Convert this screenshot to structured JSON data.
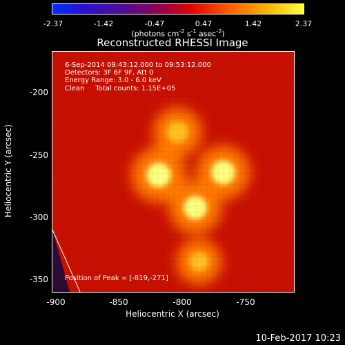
{
  "colorbar": {
    "ticks": [
      "-2.37",
      "-1.42",
      "-0.47",
      "0.47",
      "1.42",
      "2.37"
    ],
    "units_main": "(photons cm",
    "units_exp1": "-2",
    "units_mid1": " s",
    "units_exp2": "-1",
    "units_mid2": " asec",
    "units_exp3": "-2",
    "units_end": ")"
  },
  "title": "Reconstructed RHESSI Image",
  "info": {
    "line1": "6-Sep-2014 09:43:12.000 to 09:53:12.000",
    "line2": "Detectors: 3F 6F 9F, Att 0",
    "line3": "Energy Range: 3.0 - 6.0 keV",
    "line4": "Clean     Total counts: 1.15E+05",
    "peak": "Position of Peak = [-819,-271]"
  },
  "axes": {
    "xlabel": "Heliocentric X (arcsec)",
    "ylabel": "Heliocentric Y (arcsec)",
    "xticks": [
      "-900",
      "-850",
      "-800",
      "-750"
    ],
    "yticks": [
      "-200",
      "-250",
      "-300",
      "-350"
    ]
  },
  "footer": {
    "date": "10-Feb-2017 10:23"
  },
  "chart_data": {
    "type": "heatmap",
    "title": "Reconstructed RHESSI Image",
    "xlabel": "Heliocentric X (arcsec)",
    "ylabel": "Heliocentric Y (arcsec)",
    "xlim": [
      -903,
      -712
    ],
    "ylim": [
      -364,
      -173
    ],
    "color_range": [
      -2.37,
      2.37
    ],
    "peak": [
      -819,
      -271
    ],
    "sources": [
      {
        "x": -819,
        "y": -271,
        "level": 1.0
      },
      {
        "x": -768,
        "y": -269,
        "level": 0.95
      },
      {
        "x": -790,
        "y": -297,
        "level": 0.9
      },
      {
        "x": -804,
        "y": -237,
        "level": 0.75
      },
      {
        "x": -787,
        "y": -340,
        "level": 0.6
      }
    ]
  }
}
